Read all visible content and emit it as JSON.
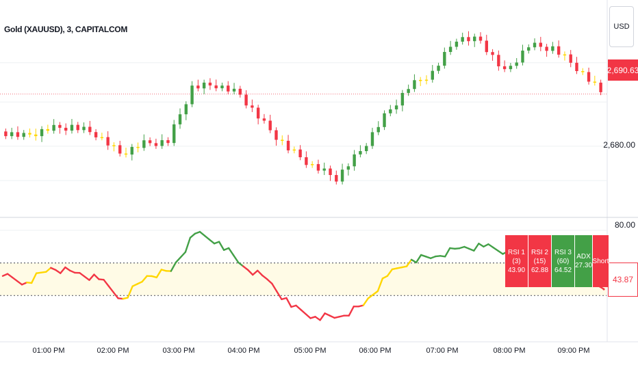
{
  "header": {
    "title": "Gold (XAUUSD), 3, CAPITALCOM",
    "currency": "USD"
  },
  "price_axis": {
    "labels": [
      "2,680.00"
    ],
    "current_price": "2,690.63"
  },
  "rsi_axis": {
    "labels": [
      "80.00"
    ],
    "current_value": "43.87"
  },
  "time_axis": {
    "labels": [
      "01:00 PM",
      "02:00 PM",
      "03:00 PM",
      "04:00 PM",
      "05:00 PM",
      "06:00 PM",
      "07:00 PM",
      "08:00 PM",
      "09:00 PM"
    ]
  },
  "indicator_table": [
    {
      "name": "RSI 1 (3)",
      "value": "43.90",
      "color": "#f23645"
    },
    {
      "name": "RSI 2 (15)",
      "value": "62.88",
      "color": "#f23645"
    },
    {
      "name": "RSI 3 (60)",
      "value": "64.52",
      "color": "#43a047"
    },
    {
      "name": "ADX",
      "value": "27.30",
      "color": "#43a047"
    },
    {
      "name": "Short",
      "value": "",
      "color": "#f23645"
    }
  ],
  "colors": {
    "up": "#43a047",
    "down": "#f23645",
    "neutral": "#ffd600",
    "band_fill": "#fffbe6",
    "grid": "#eef0f3",
    "price_line": "#f23645"
  },
  "chart_data": [
    {
      "type": "candlestick",
      "title": "Gold (XAUUSD), 3, CAPITALCOM",
      "x": [
        "12:36 PM",
        "01:00 PM",
        "01:30 PM",
        "02:00 PM",
        "02:30 PM",
        "03:00 PM",
        "03:15 PM",
        "03:30 PM",
        "04:00 PM",
        "04:30 PM",
        "05:00 PM",
        "05:15 PM",
        "05:30 PM",
        "05:45 PM",
        "06:00 PM",
        "06:15 PM",
        "06:30 PM",
        "07:00 PM",
        "07:30 PM",
        "08:00 PM",
        "08:15 PM",
        "08:30 PM",
        "08:45 PM",
        "09:00 PM",
        "09:15 PM",
        "09:30 PM"
      ],
      "close": [
        2683.0,
        2682.0,
        2683.5,
        2684.0,
        2682.5,
        2678.5,
        2680.5,
        2681.0,
        2692.0,
        2692.5,
        2690.5,
        2684.5,
        2679.5,
        2676.0,
        2673.5,
        2679.0,
        2686.0,
        2692.0,
        2695.0,
        2702.0,
        2701.5,
        2695.0,
        2700.5,
        2700.0,
        2696.0,
        2691.0
      ],
      "ylim": [
        2668,
        2707
      ],
      "y_ticks": [
        2680.0
      ],
      "last_price": 2690.63
    },
    {
      "type": "line",
      "name": "RSI",
      "x": [
        "12:36 PM",
        "01:00 PM",
        "01:30 PM",
        "02:00 PM",
        "02:30 PM",
        "03:00 PM",
        "03:15 PM",
        "03:30 PM",
        "04:00 PM",
        "04:30 PM",
        "05:00 PM",
        "05:15 PM",
        "05:30 PM",
        "05:45 PM",
        "06:00 PM",
        "06:15 PM",
        "06:30 PM",
        "07:00 PM",
        "07:30 PM",
        "08:00 PM",
        "08:15 PM",
        "08:30 PM",
        "08:45 PM",
        "09:00 PM",
        "09:15 PM",
        "09:30 PM"
      ],
      "values": [
        52,
        48,
        57,
        54,
        50,
        38,
        52,
        55,
        78,
        73,
        58,
        50,
        33,
        27,
        27,
        34,
        52,
        62,
        64,
        69,
        70,
        67,
        69,
        68,
        63,
        44
      ],
      "band": [
        40,
        60
      ],
      "ylim": [
        20,
        85
      ],
      "y_ticks": [
        80.0
      ],
      "last_value": 43.87
    }
  ]
}
